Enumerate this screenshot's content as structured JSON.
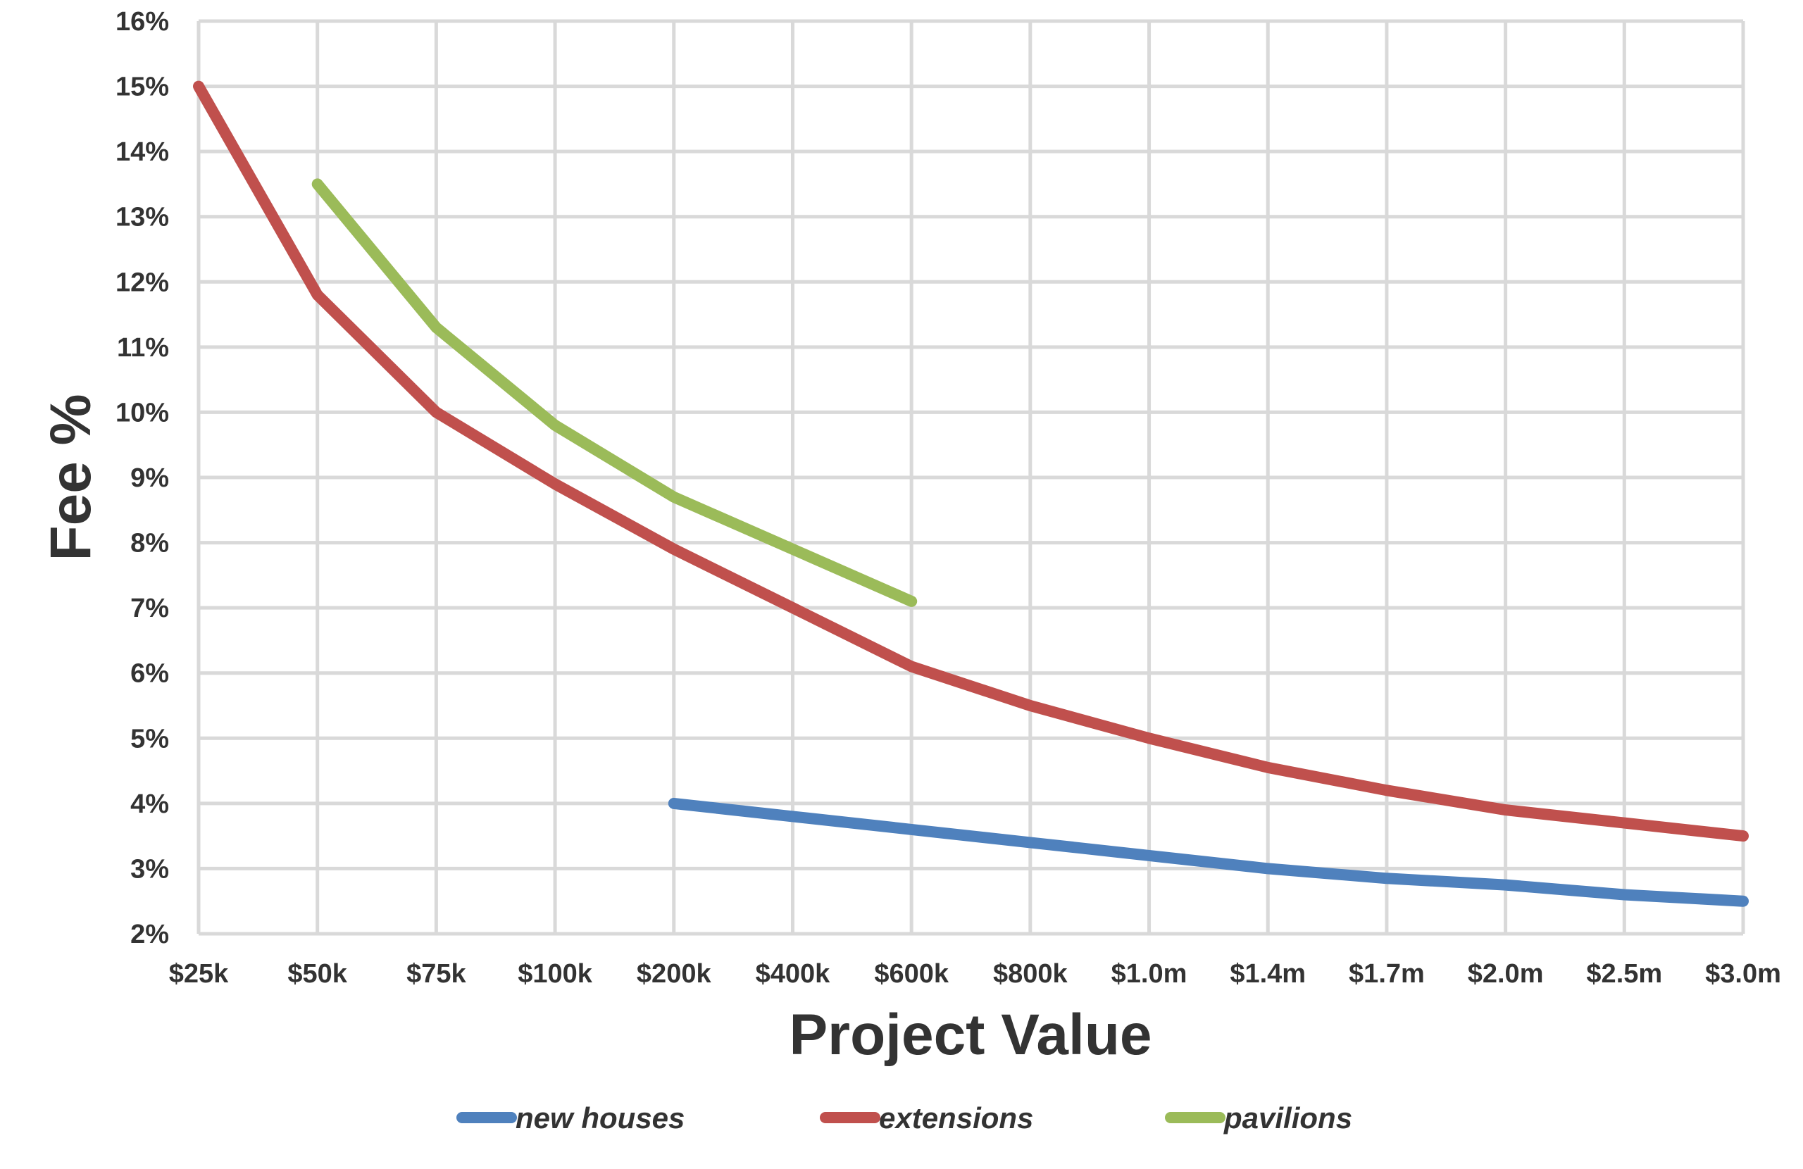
{
  "chart_data": {
    "type": "line",
    "title": "",
    "xlabel": "Project Value",
    "ylabel": "Fee %",
    "categories": [
      "$25k",
      "$50k",
      "$75k",
      "$100k",
      "$200k",
      "$400k",
      "$600k",
      "$800k",
      "$1.0m",
      "$1.4m",
      "$1.7m",
      "$2.0m",
      "$2.5m",
      "$3.0m"
    ],
    "yticks": [
      "2%",
      "3%",
      "4%",
      "5%",
      "6%",
      "7%",
      "8%",
      "9%",
      "10%",
      "11%",
      "12%",
      "13%",
      "14%",
      "15%",
      "16%"
    ],
    "ylim": [
      2,
      16
    ],
    "grid": true,
    "legend_position": "bottom",
    "series": [
      {
        "name": "new houses",
        "color": "#4f81bd",
        "values": [
          null,
          null,
          null,
          null,
          4.0,
          3.8,
          3.6,
          3.4,
          3.2,
          3.0,
          2.85,
          2.75,
          2.6,
          2.5
        ]
      },
      {
        "name": "extensions",
        "color": "#c0504d",
        "values": [
          15.0,
          11.8,
          10.0,
          8.9,
          7.9,
          7.0,
          6.1,
          5.5,
          5.0,
          4.55,
          4.2,
          3.9,
          3.7,
          3.5
        ]
      },
      {
        "name": "pavilions",
        "color": "#9bbb59",
        "values": [
          null,
          13.5,
          11.3,
          9.8,
          8.7,
          7.9,
          7.1,
          null,
          null,
          null,
          null,
          null,
          null,
          null
        ]
      }
    ]
  }
}
